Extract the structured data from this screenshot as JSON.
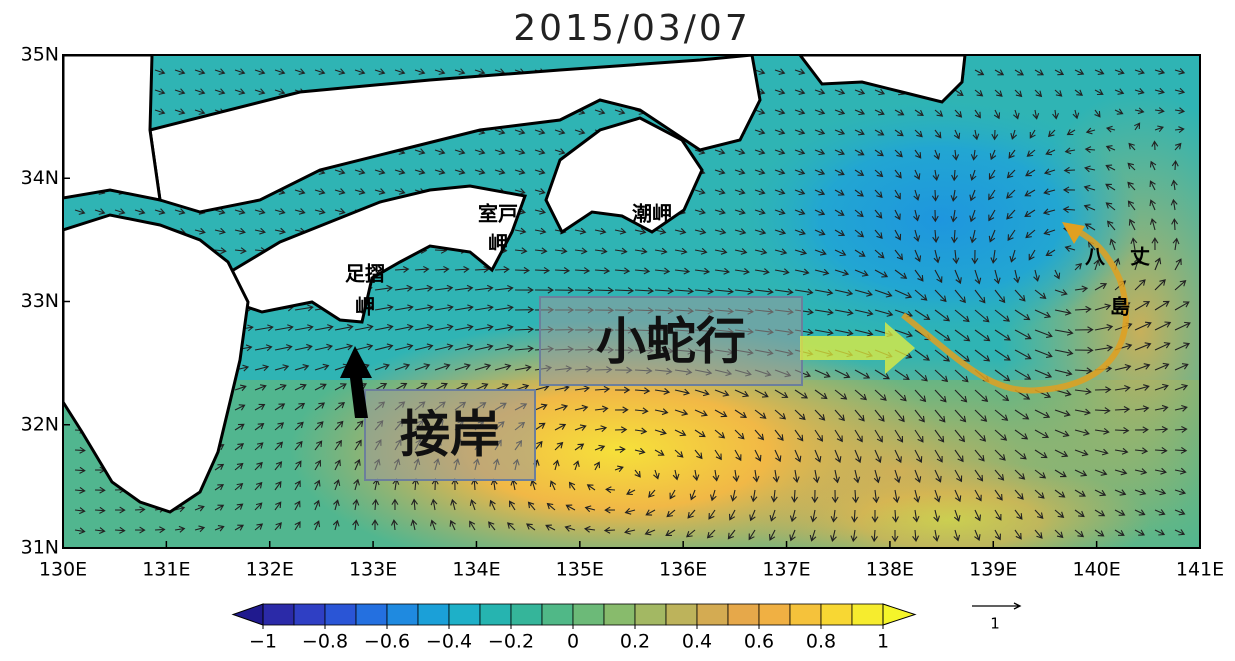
{
  "map": {
    "title": "2015/03/07",
    "xlim": [
      130,
      141
    ],
    "ylim": [
      31,
      35
    ],
    "xticks": [
      {
        "value": 130,
        "label": "130E"
      },
      {
        "value": 131,
        "label": "131E"
      },
      {
        "value": 132,
        "label": "132E"
      },
      {
        "value": 133,
        "label": "133E"
      },
      {
        "value": 134,
        "label": "134E"
      },
      {
        "value": 135,
        "label": "135E"
      },
      {
        "value": 136,
        "label": "136E"
      },
      {
        "value": 137,
        "label": "137E"
      },
      {
        "value": 138,
        "label": "138E"
      },
      {
        "value": 139,
        "label": "139E"
      },
      {
        "value": 140,
        "label": "140E"
      },
      {
        "value": 141,
        "label": "141E"
      }
    ],
    "yticks": [
      {
        "value": 31,
        "label": "31N"
      },
      {
        "value": 32,
        "label": "32N"
      },
      {
        "value": 33,
        "label": "33N"
      },
      {
        "value": 34,
        "label": "34N"
      },
      {
        "value": 35,
        "label": "35N"
      }
    ],
    "places": [
      {
        "name": [
          "足摺",
          "岬"
        ]
      },
      {
        "name": [
          "室戸",
          "岬"
        ]
      },
      {
        "name": [
          "潮岬"
        ]
      },
      {
        "name": [
          "八",
          "丈",
          "島"
        ]
      }
    ],
    "annotations": [
      "小蛇行",
      "接岸"
    ],
    "colorbar": {
      "colors": [
        "#2b2aa8",
        "#2f3fc4",
        "#2a55d6",
        "#2470e0",
        "#1f8ae0",
        "#1ba0d8",
        "#1eb0c8",
        "#26b4b0",
        "#35b59a",
        "#50b887",
        "#6cba78",
        "#88bb6c",
        "#a3b863",
        "#bdb35b",
        "#d4ab52",
        "#e6a84a",
        "#f0b043",
        "#f5c23b",
        "#f8d733",
        "#f6ec2e"
      ],
      "ticks": [
        {
          "value": -1,
          "label": "−1"
        },
        {
          "value": -0.8,
          "label": "−0.8"
        },
        {
          "value": -0.6,
          "label": "−0.6"
        },
        {
          "value": -0.4,
          "label": "−0.4"
        },
        {
          "value": -0.2,
          "label": "−0.2"
        },
        0,
        0.2,
        0.4,
        0.6,
        0.8,
        1
      ]
    },
    "vector_scale": 1
  }
}
